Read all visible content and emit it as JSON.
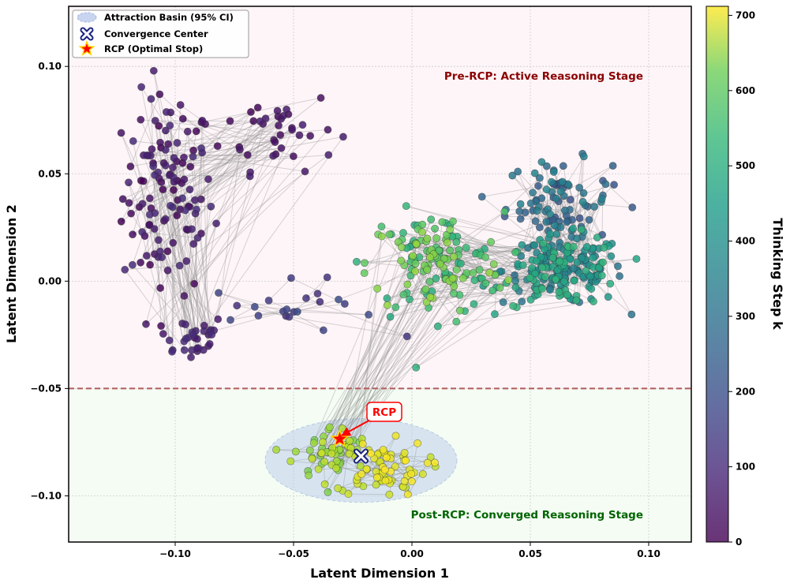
{
  "chart_data": {
    "type": "scatter",
    "xlabel": "Latent Dimension 1",
    "ylabel": "Latent Dimension 2",
    "xlim": [
      -0.145,
      0.118
    ],
    "ylim": [
      -0.1215,
      0.128
    ],
    "x_ticks": [
      -0.1,
      -0.05,
      0.0,
      0.05,
      0.1
    ],
    "x_tick_labels": [
      "−0.10",
      "−0.05",
      "0.00",
      "0.05",
      "0.10"
    ],
    "y_ticks": [
      0.1,
      0.05,
      0.0,
      -0.05,
      -0.1
    ],
    "y_tick_labels": [
      "0.10",
      "0.05",
      "0.00",
      "−0.05",
      "−0.10"
    ],
    "grid": true,
    "threshold_y": -0.05,
    "colorbar": {
      "label": "Thinking Step k",
      "min": 0,
      "max": 712,
      "ticks": [
        0,
        100,
        200,
        300,
        400,
        500,
        600,
        700
      ],
      "colormap": "viridis"
    },
    "legend": {
      "position": "top-left",
      "entries": [
        {
          "label": "Attraction Basin (95% CI)",
          "marker": "ellipse"
        },
        {
          "label": "Convergence Center",
          "marker": "x"
        },
        {
          "label": "RCP (Optimal Stop)",
          "marker": "star"
        }
      ]
    },
    "regions": {
      "pre": {
        "label": "Pre-RCP: Active Reasoning Stage",
        "color": "#8b0000"
      },
      "post": {
        "label": "Post-RCP: Converged Reasoning Stage",
        "color": "#006400"
      }
    },
    "basin": {
      "cx": -0.0215,
      "cy": -0.0835,
      "rx": 0.0405,
      "ry": 0.0195
    },
    "convergence_center": {
      "x": -0.0215,
      "y": -0.0815
    },
    "rcp": {
      "x": -0.0305,
      "y": -0.0735,
      "label": "RCP"
    },
    "trajectory_clusters": [
      {
        "name": "early-left-column",
        "step_range": [
          0,
          90
        ],
        "count": 120,
        "center": [
          -0.103,
          0.04
        ],
        "spread": [
          0.012,
          0.029
        ]
      },
      {
        "name": "early-lower-left",
        "step_range": [
          40,
          90
        ],
        "count": 32,
        "center": [
          -0.094,
          -0.026
        ],
        "spread": [
          0.01,
          0.007
        ]
      },
      {
        "name": "early-top-right",
        "step_range": [
          10,
          60
        ],
        "count": 38,
        "center": [
          -0.056,
          0.071
        ],
        "spread": [
          0.015,
          0.012
        ]
      },
      {
        "name": "transition-chain",
        "step_range": [
          90,
          170
        ],
        "count": 22,
        "center": [
          -0.05,
          -0.013
        ],
        "spread": [
          0.022,
          0.008
        ]
      },
      {
        "name": "mid-upper-right",
        "step_range": [
          180,
          330
        ],
        "count": 90,
        "center": [
          0.062,
          0.037
        ],
        "spread": [
          0.014,
          0.012
        ]
      },
      {
        "name": "mid-dense-right",
        "step_range": [
          260,
          470
        ],
        "count": 200,
        "center": [
          0.064,
          0.005
        ],
        "spread": [
          0.016,
          0.01
        ]
      },
      {
        "name": "late-center",
        "step_range": [
          430,
          600
        ],
        "count": 150,
        "center": [
          0.01,
          0.008
        ],
        "spread": [
          0.018,
          0.015
        ]
      },
      {
        "name": "basin-green",
        "step_range": [
          560,
          650
        ],
        "count": 50,
        "center": [
          -0.034,
          -0.08
        ],
        "spread": [
          0.01,
          0.008
        ]
      },
      {
        "name": "basin-yellow",
        "step_range": [
          640,
          712
        ],
        "count": 70,
        "center": [
          -0.013,
          -0.087
        ],
        "spread": [
          0.012,
          0.008
        ]
      }
    ]
  }
}
